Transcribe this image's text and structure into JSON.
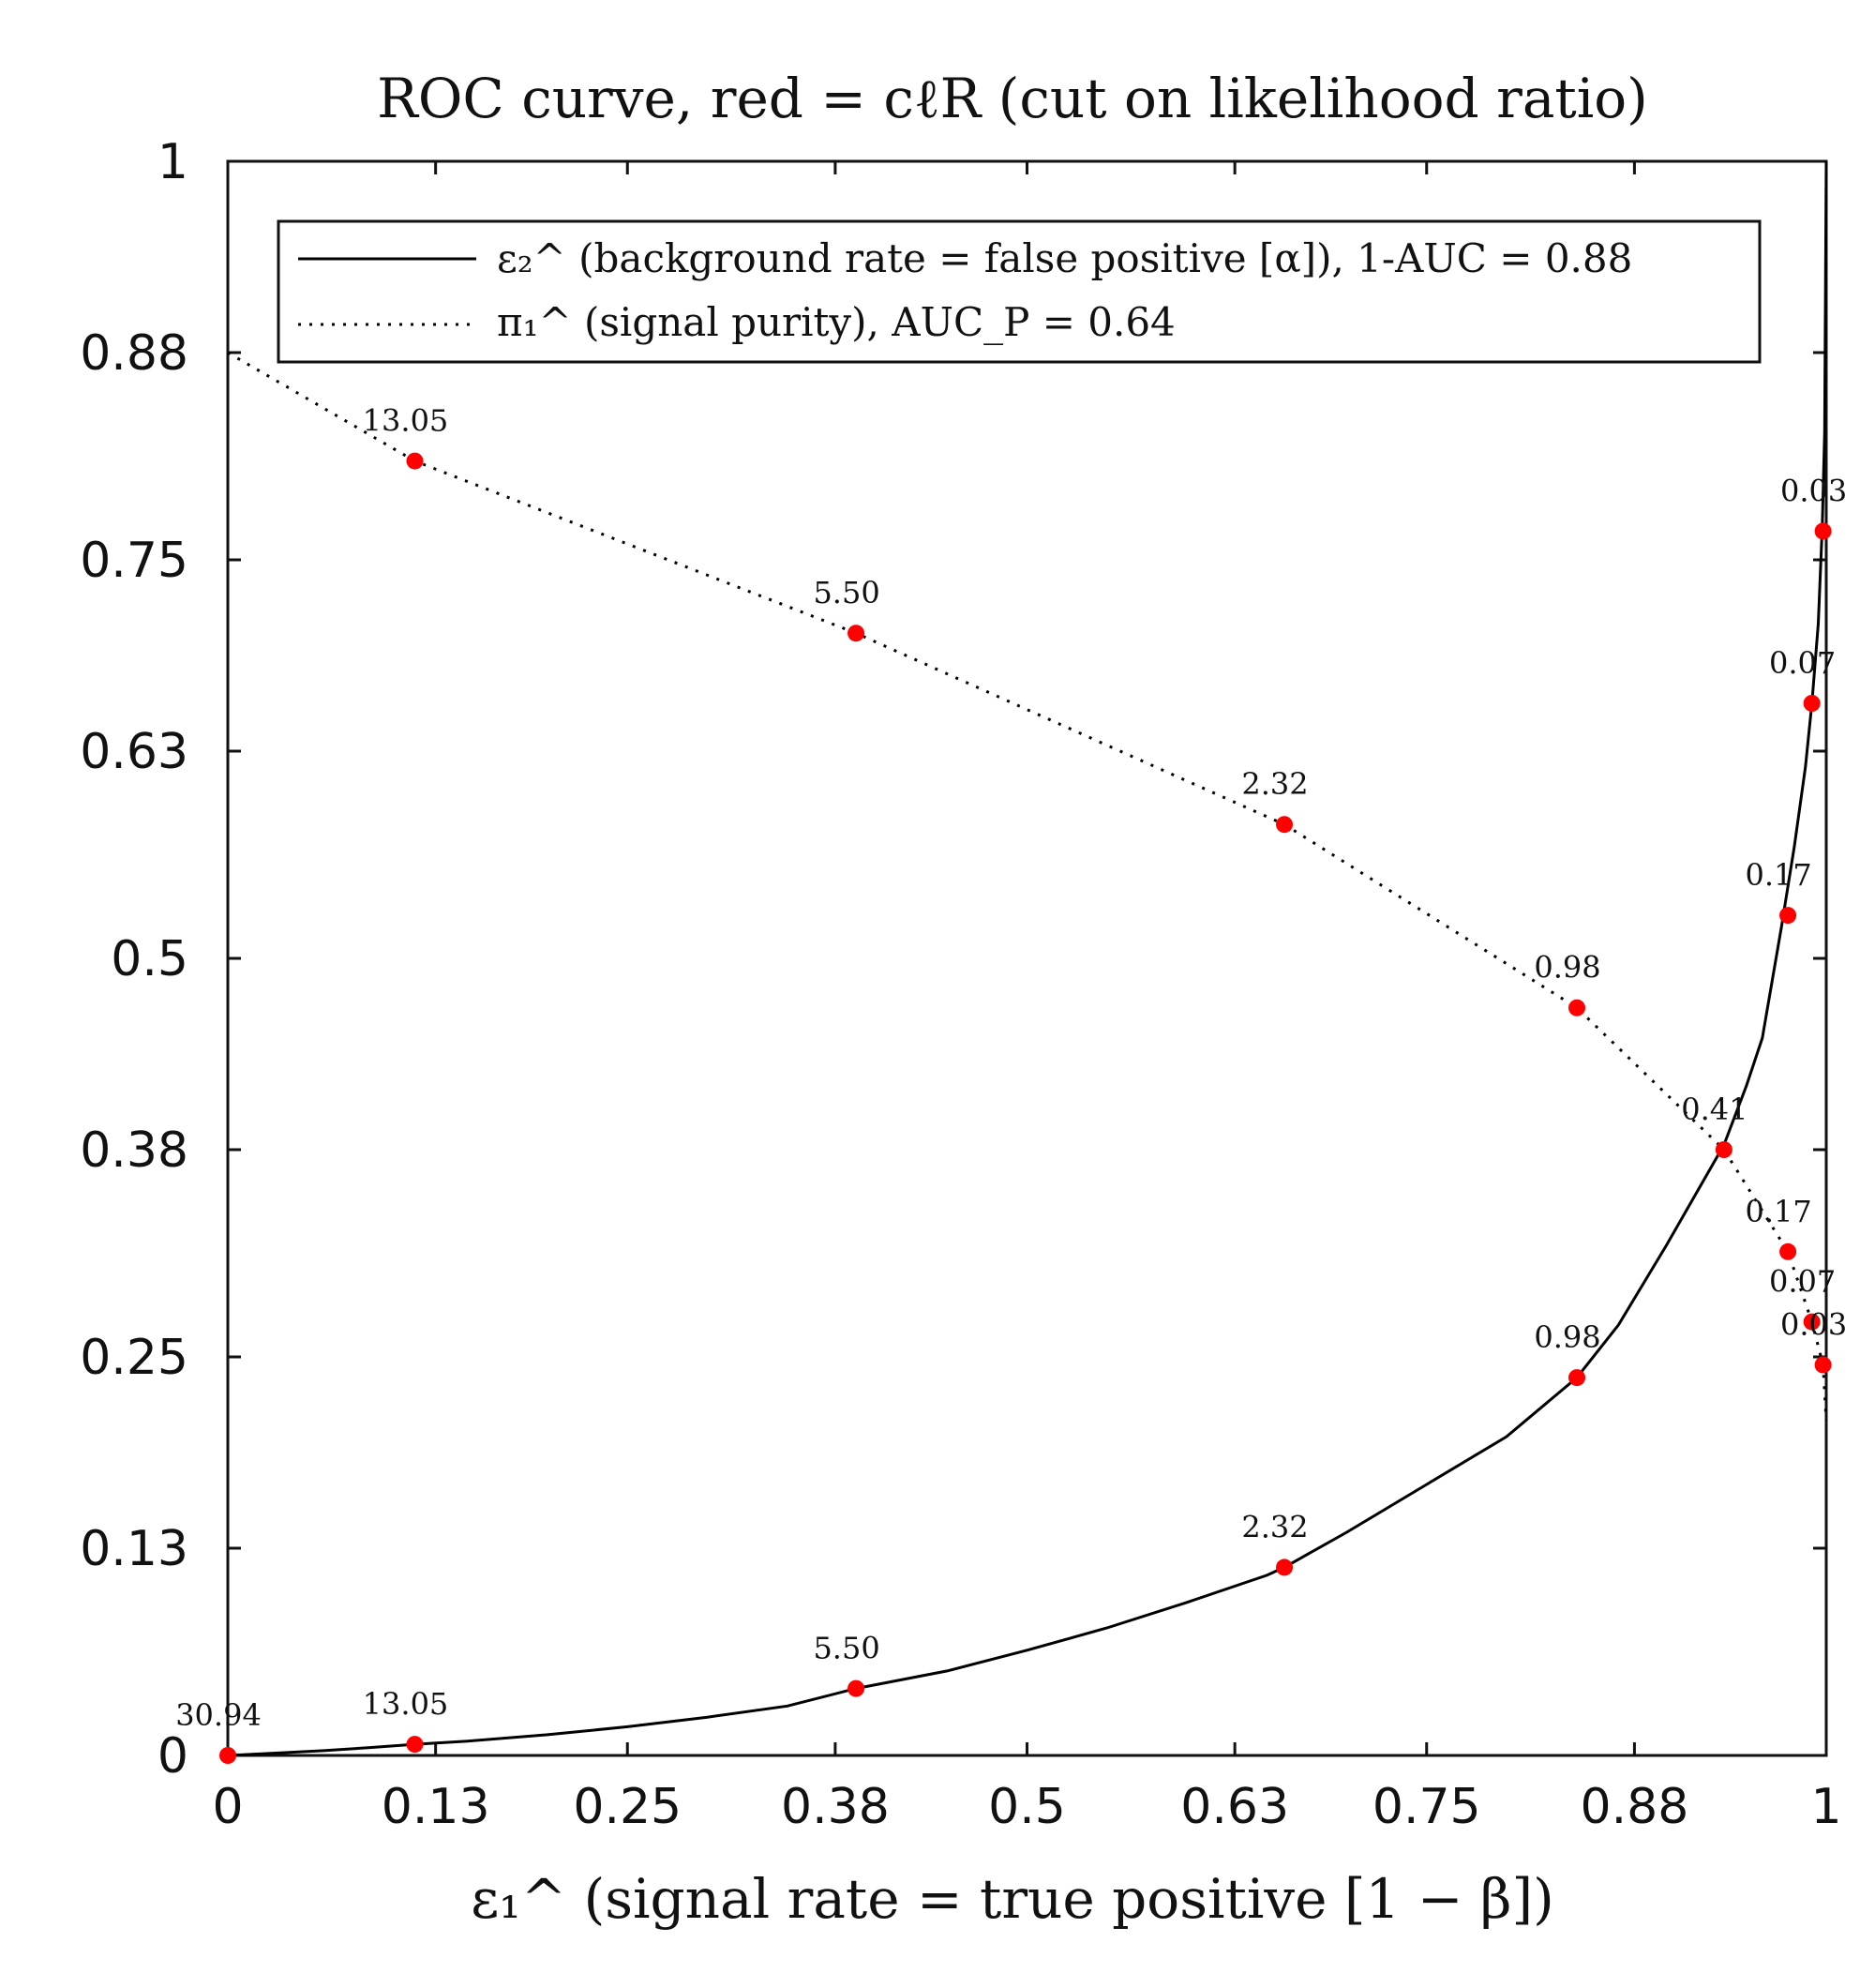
{
  "chart_data": {
    "type": "line",
    "title": "ROC curve, red = cℓR (cut on likelihood ratio)",
    "xlabel": "ε₁^ (signal rate = true positive [1 − β])",
    "ylabel": "",
    "xlim": [
      0,
      1
    ],
    "ylim": [
      0,
      1
    ],
    "x_ticks": [
      0,
      0.13,
      0.25,
      0.38,
      0.5,
      0.63,
      0.75,
      0.88,
      1
    ],
    "x_tick_labels": [
      "0",
      "0.13",
      "0.25",
      "0.38",
      "0.5",
      "0.63",
      "0.75",
      "0.88",
      "1"
    ],
    "y_ticks": [
      0,
      0.13,
      0.25,
      0.38,
      0.5,
      0.63,
      0.75,
      0.88,
      1
    ],
    "y_tick_labels": [
      "0",
      "0.13",
      "0.25",
      "0.38",
      "0.5",
      "0.63",
      "0.75",
      "0.88",
      "1"
    ],
    "grid": false,
    "legend_position": "top",
    "series": [
      {
        "name": "ε₂^ (background rate = false positive [α]), 1-AUC = 0.88",
        "style": "solid",
        "color": "#000000",
        "x": [
          0,
          0.03,
          0.06,
          0.09,
          0.117,
          0.15,
          0.2,
          0.25,
          0.3,
          0.35,
          0.393,
          0.45,
          0.5,
          0.55,
          0.6,
          0.65,
          0.661,
          0.7,
          0.75,
          0.8,
          0.844,
          0.87,
          0.9,
          0.92,
          0.936,
          0.95,
          0.96,
          0.972,
          0.98,
          0.987,
          0.991,
          0.995,
          0.9975,
          0.999,
          1.0
        ],
        "y": [
          0,
          0.0015,
          0.003,
          0.005,
          0.007,
          0.009,
          0.013,
          0.018,
          0.024,
          0.031,
          0.042,
          0.053,
          0.066,
          0.08,
          0.096,
          0.113,
          0.118,
          0.14,
          0.17,
          0.2,
          0.237,
          0.27,
          0.32,
          0.355,
          0.383,
          0.42,
          0.45,
          0.52,
          0.57,
          0.62,
          0.66,
          0.71,
          0.77,
          0.83,
          1.0
        ]
      },
      {
        "name": "π₁^ (signal purity), AUC_P = 0.64",
        "style": "dotted",
        "color": "#000000",
        "x": [
          0,
          0.117,
          0.393,
          0.661,
          0.844,
          0.936,
          0.976,
          0.991,
          0.998,
          1.0
        ],
        "y": [
          0.88,
          0.812,
          0.704,
          0.584,
          0.469,
          0.38,
          0.316,
          0.272,
          0.245,
          0.21
        ]
      }
    ],
    "marked_points": [
      {
        "label": "30.94",
        "x": 0,
        "y": 0
      },
      {
        "label": "13.05",
        "x": 0.117,
        "y": 0.007
      },
      {
        "label": "5.50",
        "x": 0.393,
        "y": 0.042
      },
      {
        "label": "2.32",
        "x": 0.661,
        "y": 0.118
      },
      {
        "label": "0.98",
        "x": 0.844,
        "y": 0.237
      },
      {
        "label": "0.41",
        "x": 0.936,
        "y": 0.38
      },
      {
        "label": "0.17",
        "x": 0.976,
        "y": 0.527
      },
      {
        "label": "0.07",
        "x": 0.991,
        "y": 0.66
      },
      {
        "label": "0.03",
        "x": 0.998,
        "y": 0.768
      },
      {
        "label": "13.05",
        "x": 0.117,
        "y": 0.812
      },
      {
        "label": "5.50",
        "x": 0.393,
        "y": 0.704
      },
      {
        "label": "2.32",
        "x": 0.661,
        "y": 0.584
      },
      {
        "label": "0.98",
        "x": 0.844,
        "y": 0.469
      },
      {
        "label": "0.17",
        "x": 0.976,
        "y": 0.316
      },
      {
        "label": "0.07",
        "x": 0.991,
        "y": 0.272
      },
      {
        "label": "0.03",
        "x": 0.998,
        "y": 0.245
      }
    ],
    "marker_color": "#ff0000"
  }
}
